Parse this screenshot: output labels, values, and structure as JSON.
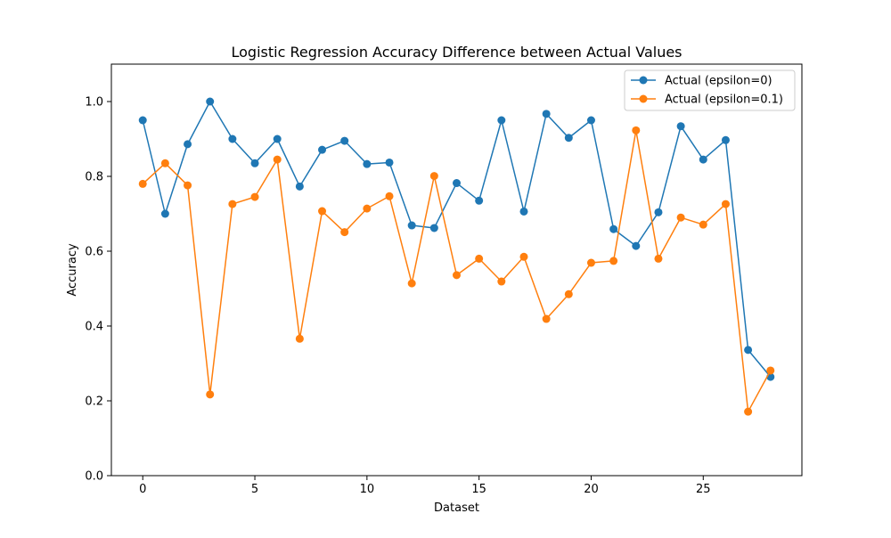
{
  "chart_data": {
    "type": "line",
    "title": "Logistic Regression Accuracy Difference between Actual Values",
    "xlabel": "Dataset",
    "ylabel": "Accuracy",
    "xlim": [
      -1.4,
      29.4
    ],
    "ylim": [
      0.0,
      1.1
    ],
    "xticks": [
      0,
      5,
      10,
      15,
      20,
      25
    ],
    "yticks": [
      0.0,
      0.2,
      0.4,
      0.6,
      0.8,
      1.0
    ],
    "xtick_labels": [
      "0",
      "5",
      "10",
      "15",
      "20",
      "25"
    ],
    "ytick_labels": [
      "0.0",
      "0.2",
      "0.4",
      "0.6",
      "0.8",
      "1.0"
    ],
    "grid": false,
    "legend_position": "top-right",
    "x": [
      0,
      1,
      2,
      3,
      4,
      5,
      6,
      7,
      8,
      9,
      10,
      11,
      12,
      13,
      14,
      15,
      16,
      17,
      18,
      19,
      20,
      21,
      22,
      23,
      24,
      25,
      26,
      27,
      28
    ],
    "series": [
      {
        "name": "Actual (epsilon=0)",
        "color": "#1f77b4",
        "values": [
          0.95,
          0.7,
          0.886,
          1.0,
          0.9,
          0.835,
          0.9,
          0.773,
          0.871,
          0.895,
          0.833,
          0.837,
          0.669,
          0.662,
          0.782,
          0.735,
          0.95,
          0.706,
          0.967,
          0.903,
          0.95,
          0.659,
          0.614,
          0.704,
          0.934,
          0.845,
          0.897,
          0.336,
          0.264
        ]
      },
      {
        "name": "Actual (epsilon=0.1)",
        "color": "#ff7f0e",
        "values": [
          0.78,
          0.835,
          0.776,
          0.217,
          0.726,
          0.745,
          0.845,
          0.366,
          0.707,
          0.651,
          0.714,
          0.747,
          0.514,
          0.801,
          0.536,
          0.58,
          0.519,
          0.585,
          0.419,
          0.485,
          0.569,
          0.574,
          0.923,
          0.58,
          0.69,
          0.671,
          0.726,
          0.171,
          0.281
        ]
      }
    ]
  }
}
